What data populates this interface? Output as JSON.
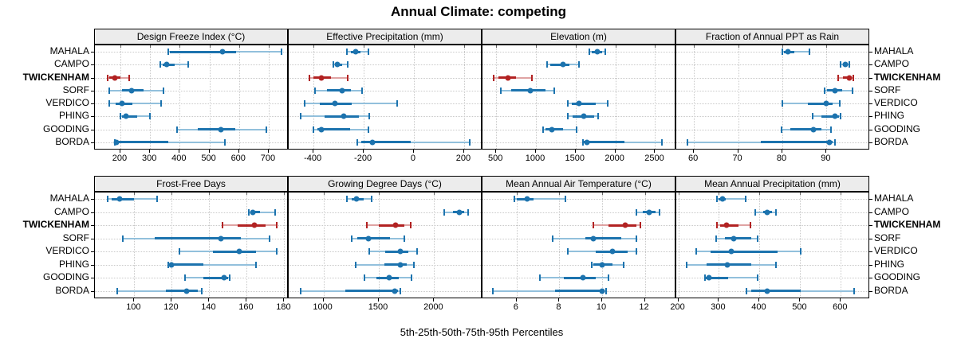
{
  "chart_data": {
    "type": "trellis-percentile-dotplot",
    "title": "Annual Climate: competing",
    "caption": "5th-25th-50th-75th-95th Percentiles",
    "percentiles": [
      "5th",
      "25th",
      "50th",
      "75th",
      "95th"
    ],
    "sites": [
      "MAHALA",
      "CAMPO",
      "TWICKENHAM",
      "SORF",
      "VERDICO",
      "PHING",
      "GOODING",
      "BORDA"
    ],
    "highlight_site": "TWICKENHAM",
    "layout": {
      "rows": 2,
      "cols": 4
    },
    "grid": "dotted",
    "colors": {
      "normal": "#1c73ae",
      "normal_light": "#92c0dc",
      "highlight": "#b22222",
      "highlight_light": "#dfa3a3",
      "strip_bg": "#ececec",
      "gridline": "#c9c9c9",
      "border": "#000000"
    },
    "panels": [
      {
        "title": "Design Freeze Index (°C)",
        "xlim": [
          114,
          762
        ],
        "ticks": [
          200,
          300,
          400,
          500,
          600,
          700
        ],
        "values": {
          "MAHALA": [
            362,
            368,
            544,
            591,
            742
          ],
          "CAMPO": [
            335,
            342,
            356,
            382,
            429
          ],
          "TWICKENHAM": [
            156,
            163,
            180,
            201,
            230
          ],
          "SORF": [
            163,
            205,
            237,
            278,
            344
          ],
          "VERDICO": [
            163,
            184,
            205,
            240,
            338
          ],
          "PHING": [
            199,
            206,
            220,
            256,
            299
          ],
          "GOODING": [
            391,
            462,
            538,
            586,
            691
          ],
          "BORDA": [
            182,
            184,
            187,
            361,
            553
          ]
        }
      },
      {
        "title": "Effective Precipitation (mm)",
        "xlim": [
          -499,
          267
        ],
        "ticks": [
          -400,
          -200,
          0,
          200
        ],
        "values": {
          "MAHALA": [
            -267,
            -252,
            -233,
            -212,
            -182
          ],
          "CAMPO": [
            -322,
            -313,
            -304,
            -287,
            -264
          ],
          "TWICKENHAM": [
            -417,
            -399,
            -368,
            -331,
            -264
          ],
          "SORF": [
            -394,
            -345,
            -286,
            -251,
            -207
          ],
          "VERDICO": [
            -435,
            -376,
            -314,
            -248,
            -66
          ],
          "PHING": [
            -451,
            -355,
            -280,
            -220,
            -179
          ],
          "GOODING": [
            -399,
            -386,
            -369,
            -255,
            -181
          ],
          "BORDA": [
            -226,
            -209,
            -164,
            -13,
            221
          ]
        }
      },
      {
        "title": "Elevation (m)",
        "xlim": [
          328,
          2746
        ],
        "ticks": [
          500,
          1000,
          1500,
          2000,
          2500
        ],
        "values": {
          "MAHALA": [
            1671,
            1705,
            1777,
            1831,
            1870
          ],
          "CAMPO": [
            1137,
            1183,
            1340,
            1421,
            1545
          ],
          "TWICKENHAM": [
            467,
            524,
            649,
            749,
            948
          ],
          "SORF": [
            560,
            686,
            932,
            1117,
            1230
          ],
          "VERDICO": [
            1403,
            1452,
            1545,
            1748,
            1903
          ],
          "PHING": [
            1403,
            1462,
            1604,
            1733,
            1787
          ],
          "GOODING": [
            1087,
            1121,
            1197,
            1346,
            1512
          ],
          "BORDA": [
            1594,
            1606,
            1638,
            2112,
            2583
          ]
        }
      },
      {
        "title": "Fraction of Annual PPT as Rain",
        "xlim": [
          56,
          99.5
        ],
        "ticks": [
          60,
          70,
          80,
          90
        ],
        "values": {
          "MAHALA": [
            80.0,
            80.4,
            81.2,
            82.8,
            86.2
          ],
          "CAMPO": [
            93.2,
            93.7,
            94.2,
            94.7,
            95.1
          ],
          "TWICKENHAM": [
            92.6,
            93.8,
            95.2,
            95.7,
            96.0
          ],
          "SORF": [
            89.5,
            90.2,
            92.0,
            93.6,
            95.9
          ],
          "VERDICO": [
            80.0,
            85.7,
            90.0,
            91.3,
            93.0
          ],
          "PHING": [
            86.9,
            88.9,
            92.0,
            92.8,
            93.2
          ],
          "GOODING": [
            79.8,
            81.9,
            87.0,
            88.9,
            91.1
          ],
          "BORDA": [
            58.5,
            75.1,
            90.6,
            91.3,
            91.9
          ]
        }
      },
      {
        "title": "Frost-Free Days",
        "xlim": [
          79,
          181.5
        ],
        "ticks": [
          100,
          120,
          140,
          160,
          180
        ],
        "values": {
          "MAHALA": [
            86,
            88,
            92,
            100,
            112
          ],
          "CAMPO": [
            161,
            162,
            163,
            167,
            175
          ],
          "TWICKENHAM": [
            147,
            155,
            164,
            170,
            176
          ],
          "SORF": [
            94,
            111,
            146,
            157,
            172
          ],
          "VERDICO": [
            124,
            142,
            156,
            165,
            176
          ],
          "PHING": [
            118,
            119,
            120,
            137,
            165
          ],
          "GOODING": [
            127,
            137,
            148,
            150,
            151
          ],
          "BORDA": [
            91,
            117,
            128,
            134,
            136
          ]
        }
      },
      {
        "title": "Growing Degree Days (°C)",
        "xlim": [
          686,
          2422
        ],
        "ticks": [
          1000,
          1500,
          2000
        ],
        "values": {
          "MAHALA": [
            1209,
            1252,
            1298,
            1365,
            1436
          ],
          "CAMPO": [
            2091,
            2168,
            2226,
            2272,
            2309
          ],
          "TWICKENHAM": [
            1393,
            1502,
            1650,
            1729,
            1791
          ],
          "SORF": [
            1257,
            1309,
            1405,
            1598,
            1731
          ],
          "VERDICO": [
            1417,
            1560,
            1697,
            1767,
            1845
          ],
          "PHING": [
            1293,
            1548,
            1693,
            1752,
            1814
          ],
          "GOODING": [
            1369,
            1477,
            1591,
            1678,
            1793
          ],
          "BORDA": [
            793,
            1198,
            1643,
            1671,
            1691
          ]
        }
      },
      {
        "title": "Mean Annual Air Temperature (°C)",
        "xlim": [
          4.4,
          13.4
        ],
        "ticks": [
          6,
          8,
          10,
          12
        ],
        "values": {
          "MAHALA": [
            5.9,
            6.0,
            6.5,
            6.8,
            8.3
          ],
          "CAMPO": [
            11.6,
            11.9,
            12.2,
            12.5,
            12.7
          ],
          "TWICKENHAM": [
            9.6,
            10.3,
            11.1,
            11.6,
            11.8
          ],
          "SORF": [
            7.7,
            9.2,
            9.6,
            10.9,
            11.6
          ],
          "VERDICO": [
            8.4,
            9.7,
            10.5,
            11.2,
            11.6
          ],
          "PHING": [
            9.5,
            9.6,
            10.0,
            10.5,
            11.0
          ],
          "GOODING": [
            7.1,
            8.2,
            9.1,
            9.7,
            10.3
          ],
          "BORDA": [
            4.9,
            7.8,
            10.0,
            10.1,
            10.2
          ]
        }
      },
      {
        "title": "Mean Annual Precipitation (mm)",
        "xlim": [
          195,
          668
        ],
        "ticks": [
          200,
          300,
          400,
          500,
          600
        ],
        "values": {
          "MAHALA": [
            296,
            300,
            309,
            316,
            366
          ],
          "CAMPO": [
            390,
            408,
            419,
            431,
            441
          ],
          "TWICKENHAM": [
            295,
            303,
            318,
            348,
            377
          ],
          "SORF": [
            293,
            315,
            336,
            380,
            396
          ],
          "VERDICO": [
            245,
            280,
            330,
            445,
            502
          ],
          "PHING": [
            221,
            270,
            320,
            380,
            441
          ],
          "GOODING": [
            265,
            268,
            275,
            322,
            396
          ],
          "BORDA": [
            368,
            380,
            419,
            502,
            632
          ]
        }
      }
    ]
  }
}
